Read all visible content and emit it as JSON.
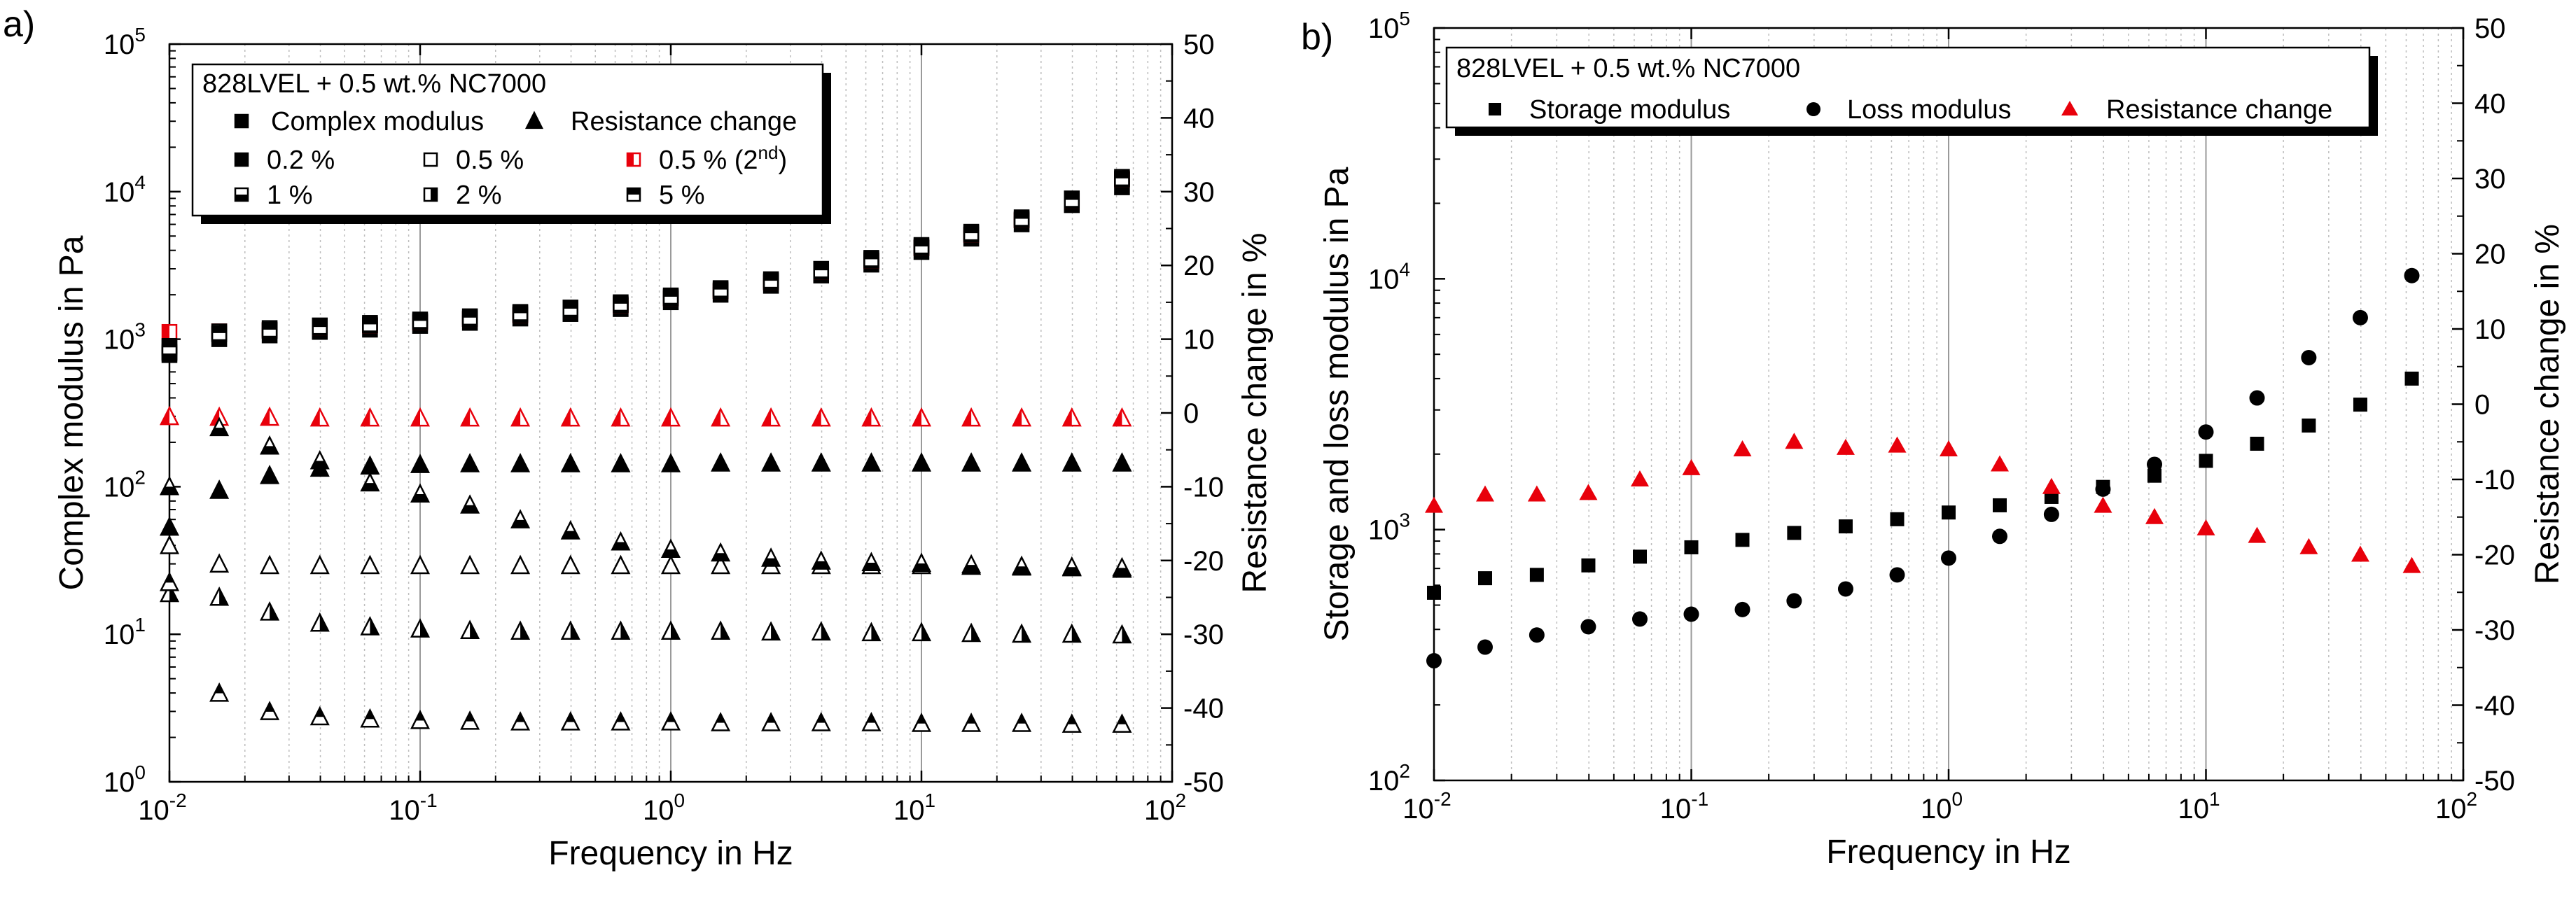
{
  "panels": {
    "a": "a)",
    "b": "b)"
  },
  "chart_data": [
    {
      "id": "a",
      "type": "scatter",
      "xlabel": "Frequency in Hz",
      "ylabel": "Complex modulus in Pa",
      "y2label": "Resistance change in %",
      "xscale": "log",
      "xlim": [
        0.01,
        100
      ],
      "yscale": "log",
      "ylim": [
        1,
        100000
      ],
      "y2lim": [
        -50,
        50
      ],
      "legend_title": "828LVEL + 0.5 wt.% NC7000",
      "legend_header": {
        "complex": "Complex modulus",
        "resistance": "Resistance change"
      },
      "legend": [
        "0.2 %",
        "0.5 %",
        "0.5 % (2",
        "nd",
        ")",
        "1 %",
        "2 %",
        "5 %"
      ],
      "x": [
        0.01,
        0.0158,
        0.0251,
        0.0398,
        0.0631,
        0.1,
        0.158,
        0.251,
        0.398,
        0.631,
        1,
        1.58,
        2.51,
        3.98,
        6.31,
        10,
        15.8,
        25.1,
        39.8,
        63.1
      ],
      "complex_modulus": [
        {
          "name": "0.2 %",
          "fill": "full",
          "values": [
            780,
            1000,
            1060,
            1120,
            1160,
            1230,
            1290,
            1380,
            1480,
            1600,
            1780,
            2000,
            2300,
            2700,
            3200,
            3900,
            4800,
            6000,
            8100,
            10700
          ]
        },
        {
          "name": "0.5 %",
          "fill": "none",
          "values": [
            800,
            1080,
            1140,
            1190,
            1240,
            1300,
            1370,
            1460,
            1570,
            1700,
            1890,
            2120,
            2430,
            2860,
            3400,
            4150,
            5100,
            6400,
            8600,
            12100
          ]
        },
        {
          "name": "0.5 % (2nd)",
          "fill": "left",
          "color": "#e8000b",
          "values": [
            1120,
            1130,
            1160,
            1190,
            1240,
            1300,
            1370,
            1460,
            1570,
            1700,
            1890,
            2120,
            2430,
            2860,
            3400,
            4150,
            5100,
            6400,
            8600,
            12100
          ]
        },
        {
          "name": "1 %",
          "fill": "bottom",
          "values": [
            820,
            1080,
            1140,
            1190,
            1240,
            1300,
            1370,
            1460,
            1570,
            1700,
            1890,
            2120,
            2430,
            2860,
            3400,
            4150,
            5100,
            6400,
            8600,
            12100
          ]
        },
        {
          "name": "2 %",
          "fill": "right",
          "values": [
            900,
            1130,
            1190,
            1240,
            1290,
            1360,
            1430,
            1530,
            1640,
            1780,
            1980,
            2220,
            2550,
            3000,
            3560,
            4350,
            5350,
            6700,
            9000,
            12600
          ]
        },
        {
          "name": "5 %",
          "fill": "top",
          "values": [
            880,
            1100,
            1160,
            1210,
            1260,
            1330,
            1400,
            1500,
            1610,
            1740,
            1940,
            2170,
            2490,
            2930,
            3480,
            4250,
            5230,
            6550,
            8800,
            12300
          ]
        }
      ],
      "resistance_change": [
        {
          "name": "0.2 %",
          "fill": "full",
          "values": [
            -15.5,
            -10.5,
            -8.5,
            -7.5,
            -7.2,
            -7.0,
            -6.9,
            -6.9,
            -6.9,
            -6.9,
            -6.9,
            -6.8,
            -6.8,
            -6.8,
            -6.8,
            -6.8,
            -6.8,
            -6.8,
            -6.8,
            -6.8
          ]
        },
        {
          "name": "0.5 %",
          "fill": "none",
          "values": [
            -18.0,
            -20.5,
            -20.7,
            -20.7,
            -20.7,
            -20.7,
            -20.7,
            -20.7,
            -20.7,
            -20.7,
            -20.7,
            -20.7,
            -20.7,
            -20.7,
            -20.7,
            -20.7,
            -20.8,
            -20.9,
            -21.0,
            -21.2
          ]
        },
        {
          "name": "0.5 % (2nd)",
          "fill": "left",
          "color": "#e8000b",
          "values": [
            -0.5,
            -0.6,
            -0.6,
            -0.7,
            -0.7,
            -0.7,
            -0.7,
            -0.7,
            -0.7,
            -0.7,
            -0.7,
            -0.7,
            -0.7,
            -0.7,
            -0.7,
            -0.7,
            -0.7,
            -0.7,
            -0.7,
            -0.7
          ]
        },
        {
          "name": "1 %",
          "fill": "bottom",
          "values": [
            -10.0,
            -2.0,
            -4.5,
            -6.5,
            -9.5,
            -11.0,
            -12.5,
            -14.5,
            -16.0,
            -17.5,
            -18.5,
            -19.0,
            -19.7,
            -20.1,
            -20.3,
            -20.4,
            -20.6,
            -20.8,
            -20.9,
            -21.0
          ]
        },
        {
          "name": "2 %",
          "fill": "right",
          "values": [
            -24.5,
            -25.0,
            -27.0,
            -28.5,
            -29.0,
            -29.3,
            -29.5,
            -29.6,
            -29.6,
            -29.6,
            -29.6,
            -29.6,
            -29.7,
            -29.7,
            -29.8,
            -29.8,
            -29.9,
            -30.0,
            -30.0,
            -30.1
          ]
        },
        {
          "name": "5 %",
          "fill": "top",
          "values": [
            -23.0,
            -38.0,
            -40.5,
            -41.2,
            -41.5,
            -41.7,
            -41.8,
            -41.9,
            -41.9,
            -41.9,
            -41.9,
            -42.0,
            -42.0,
            -42.0,
            -42.0,
            -42.1,
            -42.1,
            -42.1,
            -42.2,
            -42.2
          ]
        }
      ]
    },
    {
      "id": "b",
      "type": "scatter",
      "xlabel": "Frequency in Hz",
      "ylabel": "Storage and loss modulus in Pa",
      "y2label": "Resistance change in %",
      "xscale": "log",
      "xlim": [
        0.01,
        100
      ],
      "yscale": "log",
      "ylim": [
        100,
        100000
      ],
      "y2lim": [
        -50,
        50
      ],
      "legend_title": "828LVEL + 0.5 wt.% NC7000",
      "legend": [
        "Storage modulus",
        "Loss modulus",
        "Resistance change"
      ],
      "x": [
        0.01,
        0.0158,
        0.0251,
        0.0398,
        0.0631,
        0.1,
        0.158,
        0.251,
        0.398,
        0.631,
        1,
        1.58,
        2.51,
        3.98,
        6.31,
        10,
        15.8,
        25.1,
        39.8,
        63.1
      ],
      "series": [
        {
          "name": "Storage modulus",
          "marker": "square",
          "color": "#000000",
          "axis": "left",
          "values": [
            560,
            640,
            660,
            720,
            780,
            850,
            910,
            970,
            1030,
            1100,
            1170,
            1250,
            1350,
            1480,
            1640,
            1880,
            2200,
            2600,
            3150,
            4000
          ]
        },
        {
          "name": "Loss modulus",
          "marker": "circle",
          "color": "#000000",
          "axis": "left",
          "values": [
            300,
            340,
            380,
            410,
            440,
            460,
            480,
            520,
            580,
            660,
            770,
            940,
            1150,
            1450,
            1820,
            2450,
            3350,
            4850,
            7000,
            10300
          ]
        },
        {
          "name": "Resistance change",
          "marker": "triangle",
          "color": "#e8000b",
          "axis": "right",
          "values": [
            -13.5,
            -12.0,
            -12.0,
            -11.8,
            -10.0,
            -8.5,
            -6.0,
            -5.0,
            -5.8,
            -5.5,
            -6.0,
            -8.0,
            -11.0,
            -13.5,
            -15.0,
            -16.5,
            -17.5,
            -19.0,
            -20.0,
            -21.5
          ]
        }
      ]
    }
  ]
}
